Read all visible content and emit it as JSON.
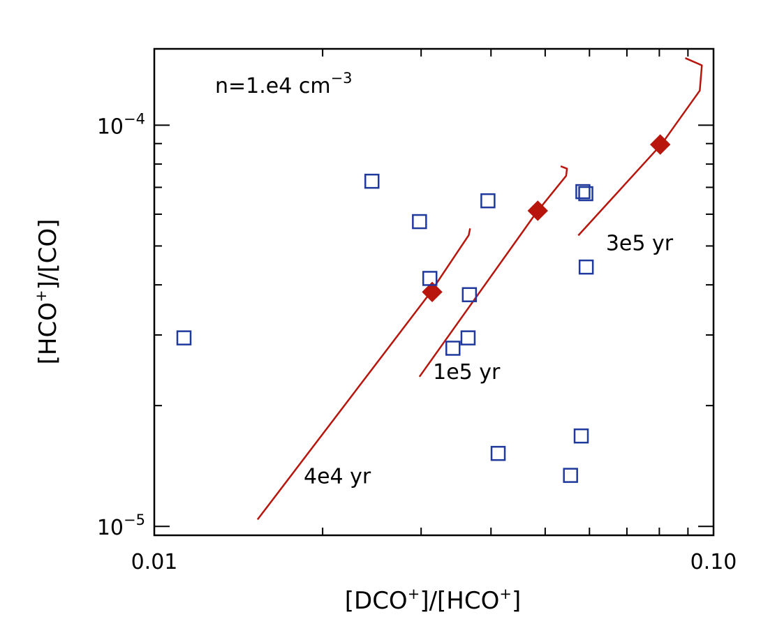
{
  "chart_data": {
    "type": "scatter",
    "title": "",
    "xlabel": {
      "pre": "[DCO",
      "sup1": "+",
      "mid": "]/[HCO",
      "sup2": "+",
      "post": "]"
    },
    "ylabel": {
      "pre": "[HCO",
      "sup1": "+",
      "post": "]/[CO]"
    },
    "x_scale": "log",
    "y_scale": "log",
    "xlim": [
      0.01,
      0.1
    ],
    "ylim": [
      9.5e-06,
      0.000155
    ],
    "x_ticks": [
      {
        "value": 0.01,
        "label": "0.01"
      },
      {
        "value": 0.1,
        "label": "0.10"
      }
    ],
    "y_ticks": [
      {
        "value": 1e-05,
        "base": "10",
        "exp": "−5"
      },
      {
        "value": 0.0001,
        "base": "10",
        "exp": "−4"
      }
    ],
    "density_label": {
      "pre": "n=1.e4  cm",
      "sup": "−3"
    },
    "colors": {
      "observations": "#1f3a9c",
      "models": "#b8150c",
      "axes": "#000000"
    },
    "observations": {
      "marker": "open-square",
      "points": [
        {
          "x": 0.0113,
          "y": 2.95e-05
        },
        {
          "x": 0.0245,
          "y": 7.25e-05
        },
        {
          "x": 0.0298,
          "y": 5.75e-05
        },
        {
          "x": 0.0311,
          "y": 4.15e-05
        },
        {
          "x": 0.0342,
          "y": 2.78e-05
        },
        {
          "x": 0.0366,
          "y": 3.78e-05
        },
        {
          "x": 0.0364,
          "y": 2.95e-05
        },
        {
          "x": 0.0395,
          "y": 6.48e-05
        },
        {
          "x": 0.0412,
          "y": 1.52e-05
        },
        {
          "x": 0.0555,
          "y": 1.34e-05
        },
        {
          "x": 0.058,
          "y": 1.68e-05
        },
        {
          "x": 0.0584,
          "y": 6.83e-05
        },
        {
          "x": 0.0591,
          "y": 6.75e-05
        },
        {
          "x": 0.0592,
          "y": 4.43e-05
        }
      ]
    },
    "models": [
      {
        "label": "4e4 yr",
        "label_pos": {
          "x": 0.0185,
          "y": 1.28e-05
        },
        "curve": [
          {
            "x": 0.0153,
            "y": 1.04e-05
          },
          {
            "x": 0.0311,
            "y": 3.81e-05
          },
          {
            "x": 0.0365,
            "y": 5.32e-05
          },
          {
            "x": 0.0367,
            "y": 5.53e-05
          }
        ],
        "marker": {
          "x": 0.0314,
          "y": 3.84e-05
        }
      },
      {
        "label": "1e5 yr",
        "label_pos": {
          "x": 0.0315,
          "y": 2.33e-05
        },
        "curve": [
          {
            "x": 0.0298,
            "y": 2.36e-05
          },
          {
            "x": 0.0482,
            "y": 6.05e-05
          },
          {
            "x": 0.0545,
            "y": 7.48e-05
          },
          {
            "x": 0.0547,
            "y": 7.79e-05
          },
          {
            "x": 0.0533,
            "y": 7.9e-05
          }
        ],
        "marker": {
          "x": 0.0485,
          "y": 6.12e-05
        }
      },
      {
        "label": "3e5 yr",
        "label_pos": {
          "x": 0.0642,
          "y": 4.88e-05
        },
        "curve": [
          {
            "x": 0.0573,
            "y": 5.31e-05
          },
          {
            "x": 0.0808,
            "y": 8.98e-05
          },
          {
            "x": 0.0945,
            "y": 0.000122
          },
          {
            "x": 0.0953,
            "y": 0.000141
          },
          {
            "x": 0.089,
            "y": 0.000147
          }
        ],
        "marker": {
          "x": 0.0803,
          "y": 8.95e-05
        }
      }
    ]
  }
}
